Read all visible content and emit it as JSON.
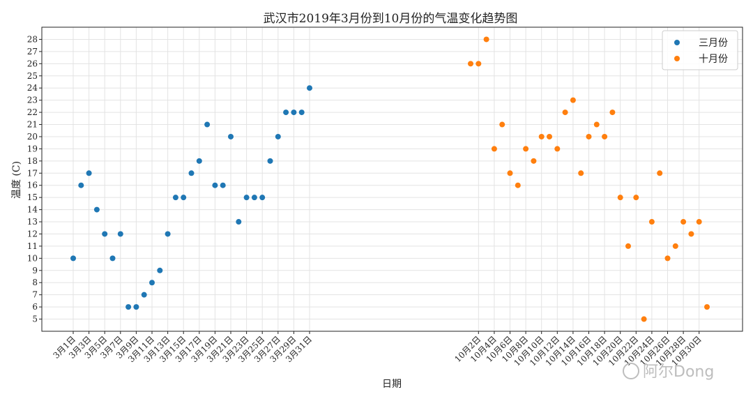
{
  "chart_data": {
    "type": "scatter",
    "title": "武汉市2019年3月份到10月份的气温变化趋势图",
    "xlabel": "日期",
    "ylabel": "温度 (C)",
    "ylim": [
      4,
      29
    ],
    "yticks": [
      5,
      6,
      7,
      8,
      9,
      10,
      11,
      12,
      13,
      14,
      15,
      16,
      17,
      18,
      19,
      20,
      21,
      22,
      23,
      24,
      25,
      26,
      27,
      28
    ],
    "grid": true,
    "legend_placement": "top-right",
    "series": [
      {
        "name": "三月份",
        "color": "#1f77b4",
        "x": [
          "3月1日",
          "3月2日",
          "3月3日",
          "3月4日",
          "3月5日",
          "3月6日",
          "3月7日",
          "3月8日",
          "3月9日",
          "3月10日",
          "3月11日",
          "3月12日",
          "3月13日",
          "3月14日",
          "3月15日",
          "3月16日",
          "3月17日",
          "3月18日",
          "3月19日",
          "3月20日",
          "3月21日",
          "3月22日",
          "3月23日",
          "3月24日",
          "3月25日",
          "3月26日",
          "3月27日",
          "3月28日",
          "3月29日",
          "3月30日",
          "3月31日"
        ],
        "values": [
          10,
          16,
          17,
          14,
          12,
          10,
          12,
          6,
          6,
          7,
          8,
          9,
          12,
          15,
          15,
          17,
          18,
          21,
          16,
          16,
          20,
          13,
          15,
          15,
          15,
          18,
          20,
          22,
          22,
          22,
          24
        ]
      },
      {
        "name": "十月份",
        "color": "#ff7f0e",
        "x": [
          "10月1日",
          "10月2日",
          "10月3日",
          "10月4日",
          "10月5日",
          "10月6日",
          "10月7日",
          "10月8日",
          "10月9日",
          "10月10日",
          "10月11日",
          "10月12日",
          "10月13日",
          "10月14日",
          "10月15日",
          "10月16日",
          "10月17日",
          "10月18日",
          "10月19日",
          "10月20日",
          "10月21日",
          "10月22日",
          "10月23日",
          "10月24日",
          "10月25日",
          "10月26日",
          "10月27日",
          "10月28日",
          "10月29日",
          "10月30日",
          "10月31日"
        ],
        "values": [
          26,
          26,
          28,
          19,
          21,
          17,
          16,
          19,
          18,
          20,
          20,
          19,
          22,
          23,
          17,
          20,
          21,
          20,
          22,
          15,
          11,
          15,
          5,
          13,
          17,
          10,
          11,
          13,
          12,
          13,
          6
        ]
      }
    ],
    "xticks_march": [
      "3月1日",
      "3月3日",
      "3月5日",
      "3月7日",
      "3月9日",
      "3月11日",
      "3月13日",
      "3月15日",
      "3月17日",
      "3月19日",
      "3月21日",
      "3月23日",
      "3月25日",
      "3月27日",
      "3月29日",
      "3月31日"
    ],
    "xticks_october": [
      "10月2日",
      "10月4日",
      "10月6日",
      "10月8日",
      "10月10日",
      "10月12日",
      "10月14日",
      "10月16日",
      "10月18日",
      "10月20日",
      "10月22日",
      "10月24日",
      "10月26日",
      "10月28日",
      "10月30日"
    ]
  },
  "watermark": "阿尔Dong"
}
